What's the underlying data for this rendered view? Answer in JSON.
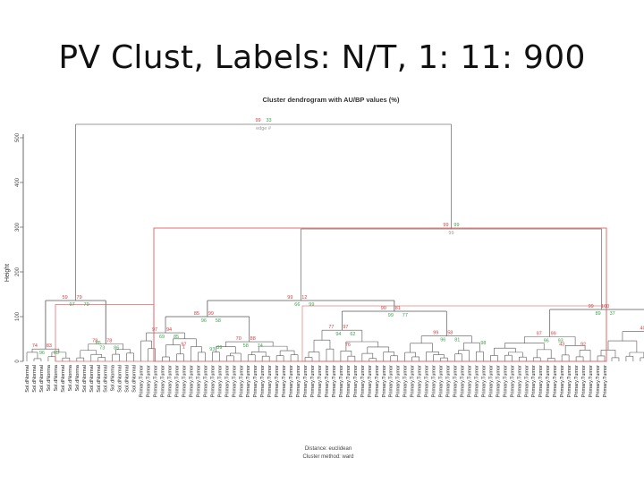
{
  "slide": {
    "title": "PV Clust, Labels: N/T, 1: 11: 900"
  },
  "plot": {
    "title": "Cluster dendrogram with AU/BP values (%)",
    "ylabel": "Height",
    "xlabel_line1": "Distance: euclidean",
    "xlabel_line2": "Cluster method: ward",
    "y_ticks": [
      "0",
      "100",
      "200",
      "300",
      "400",
      "500"
    ],
    "colors": {
      "au": "#d43b3b",
      "bp": "#3aa14a",
      "edge": "#9a9a9a",
      "highlight": "#e06060",
      "branch": "#555555"
    },
    "root_values": {
      "au": "99",
      "bp": "33",
      "edge": "edge #"
    },
    "main_split_values": {
      "au": "99",
      "bp": "99",
      "edge": "99"
    },
    "leaf_labels": [
      "Sol.dNormal",
      "Sol.dNormal",
      "Sol.dNormal",
      "Sol.dNorma",
      "Sol.dNorma",
      "Sol.dNormal",
      "Sol.dNorma",
      "Sol.dNorma",
      "Sol.dNormal",
      "Sol.dNormal",
      "Sol.dNormal",
      "Sol.dNormal",
      "Sol.dNorma",
      "Sol.dNormal",
      "Sol.dNormal",
      "Sol.dNormal",
      "Primary.Tumor",
      "Primary.Tumor",
      "Primary.Tumor",
      "Primary.Tumor",
      "Primary.Tumor",
      "Primary.Tumor",
      "Primary.Tumor",
      "Primary.Tumor",
      "Primary.Tumor",
      "Primary.Tumor",
      "Primary.Tumor",
      "Primary.Tumor",
      "Primary.Tumor",
      "Primary.Tumor",
      "Primary.Tumor",
      "Primary.Tumor",
      "Primary.Tumor",
      "Primary.Tumor",
      "Primary.Tumor",
      "Primary.Tumor",
      "Primary.Tumor",
      "Primary.Tumor",
      "Primary.Tumor",
      "Primary.Tumor",
      "Primary.Tumor",
      "Primary.Tumor",
      "Primary.Tumor",
      "Primary.Tumor",
      "Primary.Tumor",
      "Primary.Tumor",
      "Primary.Tumor",
      "Primary.Tumor",
      "Primary.Tumor",
      "Primary.Tumor",
      "Primary.Tumor",
      "Primary.Tumor",
      "Primary.Tumor",
      "Primary.Tumor",
      "Primary.Tumor",
      "Primary.Tumor",
      "Primary.Tumor",
      "Primary.Tumor",
      "Primary.Tumor",
      "Primary.Tumor",
      "Primary.Tumor",
      "Primary.Tumor",
      "Primary.Tumor",
      "Primary.Tumor",
      "Primary.Tumor",
      "Primary.Tumor",
      "Primary.Tumor",
      "Primary.Tumor",
      "Primary.Tumor",
      "Primary.Tumor",
      "Primary.Tumor",
      "Primary.Tumor",
      "Primary.Tumor",
      "Primary.Tumor",
      "Primary.Tumor",
      "Primary.Tumor",
      "Primary.Tumor",
      "Primary.Tumor",
      "Primary.Tumor",
      "Primary.Tumor",
      "Primary.Tumor",
      "Primary.Tumor"
    ],
    "node_values": [
      "74",
      "96",
      "83",
      "65",
      "78",
      "73",
      "78",
      "86",
      "97",
      "69",
      "94",
      "85",
      "70",
      "58",
      "88",
      "74",
      "77",
      "94",
      "97",
      "62",
      "99",
      "96",
      "58",
      "81",
      "97",
      "96",
      "99",
      "93",
      "40",
      "50",
      "90",
      "88",
      "59",
      "97",
      "79",
      "79",
      "85",
      "96",
      "99",
      "58",
      "90",
      "99",
      "81",
      "77",
      "99",
      "89",
      "100",
      "37",
      "99",
      "66",
      "12",
      "99",
      "1",
      "93",
      "43",
      "98",
      "97",
      "85",
      "92",
      "89",
      "76"
    ]
  }
}
